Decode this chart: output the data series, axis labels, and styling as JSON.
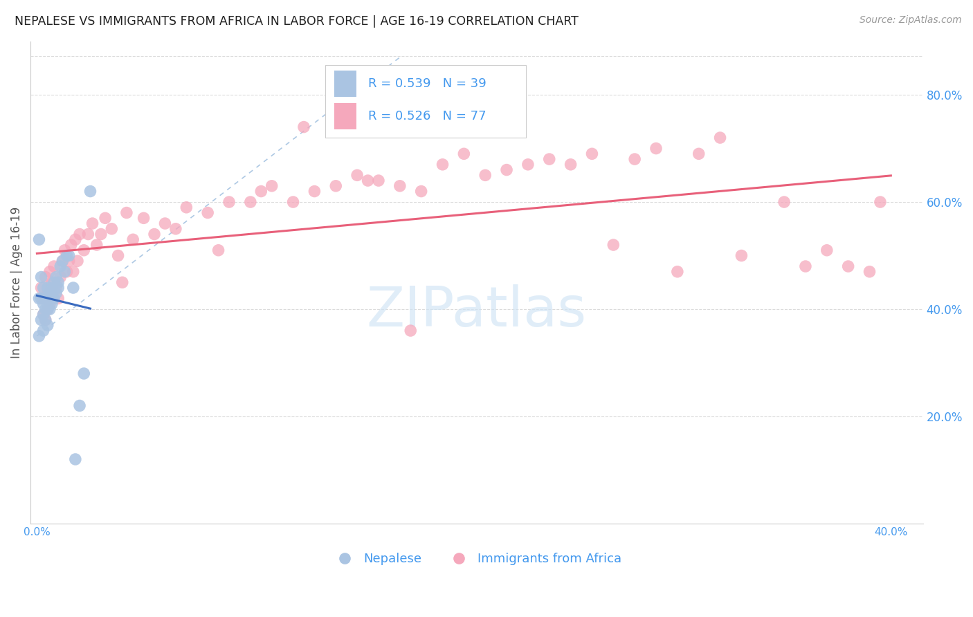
{
  "title": "NEPALESE VS IMMIGRANTS FROM AFRICA IN LABOR FORCE | AGE 16-19 CORRELATION CHART",
  "source": "Source: ZipAtlas.com",
  "ylabel": "In Labor Force | Age 16-19",
  "series1_name": "Nepalese",
  "series1_color": "#aac4e2",
  "series1_line_color": "#3a6bbf",
  "series1_R": 0.539,
  "series1_N": 39,
  "series2_name": "Immigrants from Africa",
  "series2_color": "#f5a8bc",
  "series2_line_color": "#e8607a",
  "series2_R": 0.526,
  "series2_N": 77,
  "xlim": [
    -0.003,
    0.415
  ],
  "ylim": [
    0.0,
    0.9
  ],
  "right_yticks": [
    0.2,
    0.4,
    0.6,
    0.8
  ],
  "background_color": "#ffffff",
  "grid_color": "#cccccc",
  "tick_label_color": "#4499ee",
  "title_color": "#222222",
  "watermark_color": "#d0e4f5",
  "nepalese_x": [
    0.001,
    0.001,
    0.001,
    0.002,
    0.002,
    0.002,
    0.003,
    0.003,
    0.003,
    0.003,
    0.004,
    0.004,
    0.004,
    0.005,
    0.005,
    0.005,
    0.005,
    0.006,
    0.006,
    0.006,
    0.007,
    0.007,
    0.007,
    0.008,
    0.008,
    0.009,
    0.009,
    0.01,
    0.01,
    0.011,
    0.012,
    0.013,
    0.014,
    0.015,
    0.017,
    0.018,
    0.02,
    0.022,
    0.025
  ],
  "nepalese_y": [
    0.53,
    0.42,
    0.35,
    0.46,
    0.42,
    0.38,
    0.44,
    0.41,
    0.39,
    0.36,
    0.42,
    0.4,
    0.38,
    0.44,
    0.42,
    0.4,
    0.37,
    0.43,
    0.42,
    0.4,
    0.44,
    0.43,
    0.41,
    0.45,
    0.42,
    0.46,
    0.43,
    0.45,
    0.44,
    0.48,
    0.49,
    0.47,
    0.5,
    0.5,
    0.44,
    0.12,
    0.22,
    0.28,
    0.62
  ],
  "africa_x": [
    0.002,
    0.003,
    0.003,
    0.004,
    0.004,
    0.005,
    0.005,
    0.006,
    0.006,
    0.007,
    0.007,
    0.008,
    0.009,
    0.01,
    0.011,
    0.012,
    0.013,
    0.014,
    0.015,
    0.016,
    0.017,
    0.018,
    0.019,
    0.02,
    0.022,
    0.024,
    0.026,
    0.028,
    0.03,
    0.032,
    0.035,
    0.038,
    0.04,
    0.042,
    0.045,
    0.05,
    0.055,
    0.06,
    0.065,
    0.07,
    0.08,
    0.085,
    0.09,
    0.1,
    0.105,
    0.11,
    0.12,
    0.125,
    0.13,
    0.14,
    0.15,
    0.155,
    0.16,
    0.17,
    0.175,
    0.18,
    0.19,
    0.2,
    0.21,
    0.22,
    0.23,
    0.24,
    0.25,
    0.26,
    0.27,
    0.28,
    0.29,
    0.3,
    0.31,
    0.32,
    0.33,
    0.35,
    0.36,
    0.37,
    0.38,
    0.39,
    0.395
  ],
  "africa_y": [
    0.44,
    0.42,
    0.39,
    0.46,
    0.38,
    0.43,
    0.4,
    0.47,
    0.41,
    0.45,
    0.43,
    0.48,
    0.44,
    0.42,
    0.46,
    0.49,
    0.51,
    0.47,
    0.49,
    0.52,
    0.47,
    0.53,
    0.49,
    0.54,
    0.51,
    0.54,
    0.56,
    0.52,
    0.54,
    0.57,
    0.55,
    0.5,
    0.45,
    0.58,
    0.53,
    0.57,
    0.54,
    0.56,
    0.55,
    0.59,
    0.58,
    0.51,
    0.6,
    0.6,
    0.62,
    0.63,
    0.6,
    0.74,
    0.62,
    0.63,
    0.65,
    0.64,
    0.64,
    0.63,
    0.36,
    0.62,
    0.67,
    0.69,
    0.65,
    0.66,
    0.67,
    0.68,
    0.67,
    0.69,
    0.52,
    0.68,
    0.7,
    0.47,
    0.69,
    0.72,
    0.5,
    0.6,
    0.48,
    0.51,
    0.48,
    0.47,
    0.6
  ]
}
